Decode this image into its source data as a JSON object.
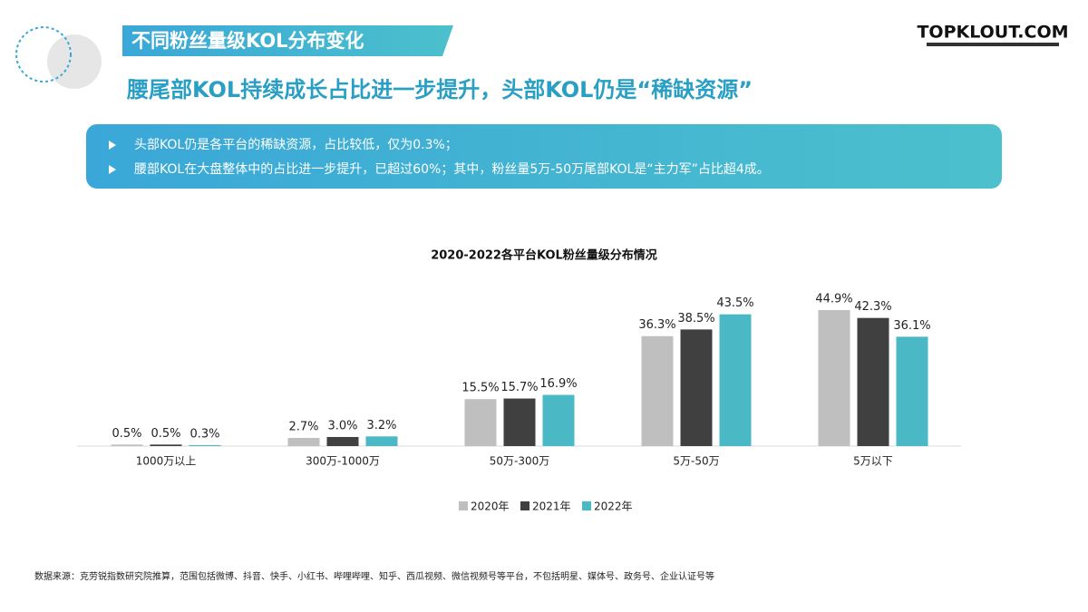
{
  "header": {
    "title": "不同粉丝量级KOL分布变化",
    "subtitle": "腰尾部KOL持续成长占比进一步提升，头部KOL仍是“稀缺资源”",
    "logo": "TOPKLOUT.COM"
  },
  "bullets": [
    "头部KOL仍是各平台的稀缺资源，占比较低，仅为0.3%；",
    "腰部KOL在大盘整体中的占比进一步提升，已超过60%；其中，粉丝量5万-50万尾部KOL是“主力军”占比超4成。"
  ],
  "chart_data": {
    "type": "bar",
    "title": "2020-2022各平台KOL粉丝量级分布情况",
    "categories": [
      "1000万以上",
      "300万-1000万",
      "50万-300万",
      "5万-50万",
      "5万以下"
    ],
    "series": [
      {
        "name": "2020年",
        "color": "#bfbfbf",
        "values": [
          0.5,
          2.7,
          15.5,
          36.3,
          44.9
        ],
        "value_labels": [
          "0.5%",
          "2.7%",
          "15.5%",
          "36.3%",
          "44.9%"
        ]
      },
      {
        "name": "2021年",
        "color": "#404040",
        "values": [
          0.5,
          3.0,
          15.7,
          38.5,
          42.3
        ],
        "value_labels": [
          "0.5%",
          "3.0%",
          "15.7%",
          "38.5%",
          "42.3%"
        ]
      },
      {
        "name": "2022年",
        "color": "#4bb8c6",
        "values": [
          0.3,
          3.2,
          16.9,
          43.5,
          36.1
        ],
        "value_labels": [
          "0.3%",
          "3.2%",
          "16.9%",
          "43.5%",
          "36.1%"
        ]
      }
    ],
    "legend": "bottom"
  },
  "source": "数据来源：克劳锐指数研究院推算，范围包括微博、抖音、快手、小红书、哔哩哔哩、知乎、西瓜视频、微信视频号等平台，不包括明星、媒体号、政务号、企业认证号等"
}
